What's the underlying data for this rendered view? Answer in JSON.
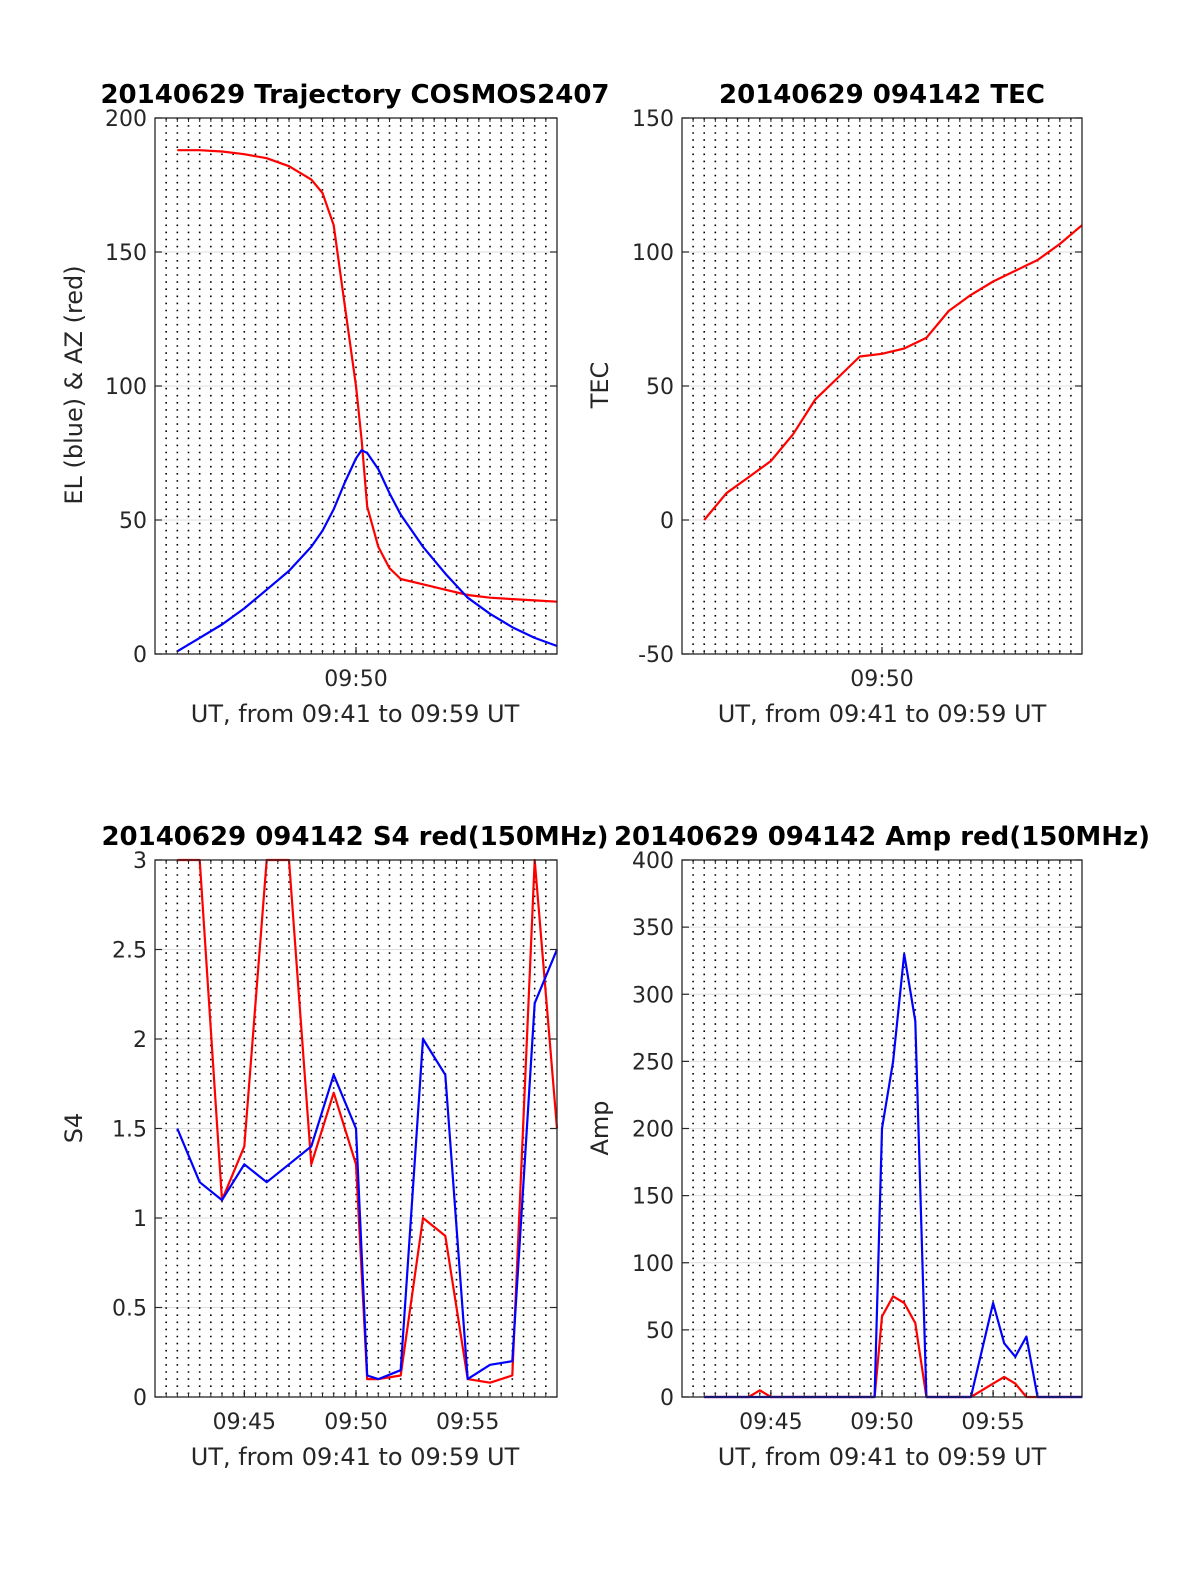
{
  "chart_data": [
    {
      "type": "line",
      "title": "20140629 Trajectory COSMOS2407",
      "xlabel": "UT, from 09:41 to 09:59 UT",
      "ylabel": "EL (blue) & AZ (red)",
      "xlim": [
        "09:41",
        "09:59"
      ],
      "ylim": [
        0,
        200
      ],
      "xticks": [
        "09:50"
      ],
      "yticks": [
        "0",
        "50",
        "100",
        "150",
        "200"
      ],
      "grid": "dotted vertical lines every 30 s; light horizontal lines at y ticks",
      "series": [
        {
          "color": "#ff0000",
          "label_ref": "AZ (red)",
          "x": [
            "09:42",
            "09:43",
            "09:44",
            "09:45",
            "09:46",
            "09:47",
            "09:48",
            "09:48:30",
            "09:49",
            "09:49:30",
            "09:50",
            "09:50:15",
            "09:50:30",
            "09:51",
            "09:51:30",
            "09:52",
            "09:53",
            "09:54",
            "09:55",
            "09:56",
            "09:57",
            "09:58",
            "09:59"
          ],
          "values": [
            188,
            188,
            187.5,
            186.5,
            185,
            182,
            177,
            172,
            160,
            130,
            100,
            80,
            55,
            40,
            32,
            28,
            26,
            24,
            22,
            21,
            20.5,
            20,
            19.5
          ]
        },
        {
          "color": "#0000ff",
          "label_ref": "EL (blue)",
          "x": [
            "09:42",
            "09:43",
            "09:44",
            "09:45",
            "09:46",
            "09:47",
            "09:48",
            "09:48:30",
            "09:49",
            "09:49:30",
            "09:50",
            "09:50:15",
            "09:50:30",
            "09:51",
            "09:51:30",
            "09:52",
            "09:53",
            "09:54",
            "09:55",
            "09:56",
            "09:57",
            "09:58",
            "09:59"
          ],
          "values": [
            1,
            6,
            11,
            17,
            24,
            31,
            40,
            46,
            54,
            64,
            73,
            76,
            75,
            69,
            60,
            52,
            40,
            30,
            21,
            15,
            10,
            6,
            3
          ]
        }
      ]
    },
    {
      "type": "line",
      "title": "20140629 094142 TEC",
      "xlabel": "UT, from 09:41 to 09:59 UT",
      "ylabel": "TEC",
      "xlim": [
        "09:41",
        "09:59"
      ],
      "ylim": [
        -50,
        150
      ],
      "xticks": [
        "09:50"
      ],
      "yticks": [
        "-50",
        "0",
        "50",
        "100",
        "150"
      ],
      "grid": "dotted vertical lines every 30 s; light horizontal lines at y ticks",
      "series": [
        {
          "color": "#ff0000",
          "x": [
            "09:42",
            "09:43",
            "09:44",
            "09:45",
            "09:46",
            "09:47",
            "09:48",
            "09:49",
            "09:50",
            "09:51",
            "09:52",
            "09:53",
            "09:54",
            "09:55",
            "09:56",
            "09:57",
            "09:58",
            "09:59"
          ],
          "values": [
            0,
            10,
            16,
            22,
            32,
            45,
            53,
            61,
            62,
            64,
            68,
            78,
            84,
            89,
            93,
            97,
            103,
            110
          ]
        }
      ]
    },
    {
      "type": "line",
      "title": "20140629 094142 S4 red(150MHz)",
      "xlabel": "UT, from 09:41 to 09:59 UT",
      "ylabel": "S4",
      "xlim": [
        "09:41",
        "09:59"
      ],
      "ylim": [
        0,
        3
      ],
      "xticks": [
        "09:45",
        "09:50",
        "09:55"
      ],
      "yticks": [
        "0",
        "0.5",
        "1",
        "1.5",
        "2",
        "2.5",
        "3"
      ],
      "grid": "dotted vertical lines every 30 s; light horizontal lines at y ticks",
      "series": [
        {
          "color": "#ff0000",
          "x": [
            "09:42",
            "09:43",
            "09:44",
            "09:45",
            "09:46",
            "09:47",
            "09:48",
            "09:49",
            "09:50",
            "09:50:30",
            "09:51",
            "09:52",
            "09:53",
            "09:54",
            "09:55",
            "09:56",
            "09:57",
            "09:58",
            "09:59"
          ],
          "values": [
            3,
            3,
            1.1,
            1.4,
            3,
            3,
            1.3,
            1.7,
            1.3,
            0.1,
            0.1,
            0.12,
            1.0,
            0.9,
            0.1,
            0.08,
            0.12,
            3,
            1.5
          ]
        },
        {
          "color": "#0000ff",
          "x": [
            "09:42",
            "09:43",
            "09:44",
            "09:45",
            "09:46",
            "09:47",
            "09:48",
            "09:49",
            "09:50",
            "09:50:30",
            "09:51",
            "09:52",
            "09:53",
            "09:54",
            "09:55",
            "09:56",
            "09:57",
            "09:58",
            "09:59"
          ],
          "values": [
            1.5,
            1.2,
            1.1,
            1.3,
            1.2,
            1.3,
            1.4,
            1.8,
            1.5,
            0.12,
            0.1,
            0.15,
            2.0,
            1.8,
            0.1,
            0.18,
            0.2,
            2.2,
            2.5
          ]
        }
      ]
    },
    {
      "type": "line",
      "title": "20140629 094142 Amp red(150MHz)",
      "xlabel": "UT, from 09:41 to 09:59 UT",
      "ylabel": "Amp",
      "xlim": [
        "09:41",
        "09:59"
      ],
      "ylim": [
        0,
        400
      ],
      "xticks": [
        "09:45",
        "09:50",
        "09:55"
      ],
      "yticks": [
        "0",
        "50",
        "100",
        "150",
        "200",
        "250",
        "300",
        "350",
        "400"
      ],
      "grid": "dotted vertical lines every 30 s; light horizontal lines at y ticks",
      "series": [
        {
          "color": "#ff0000",
          "x": [
            "09:42",
            "09:44",
            "09:44:30",
            "09:45",
            "09:49",
            "09:49:40",
            "09:50",
            "09:50:30",
            "09:51",
            "09:51:30",
            "09:52",
            "09:54",
            "09:55",
            "09:55:30",
            "09:56",
            "09:56:30",
            "09:59"
          ],
          "values": [
            0,
            0,
            5,
            0,
            0,
            0,
            60,
            75,
            70,
            55,
            0,
            0,
            10,
            15,
            10,
            0,
            0
          ]
        },
        {
          "color": "#0000ff",
          "x": [
            "09:42",
            "09:44",
            "09:45",
            "09:49",
            "09:49:40",
            "09:50",
            "09:50:30",
            "09:51",
            "09:51:30",
            "09:52",
            "09:54",
            "09:55",
            "09:55:30",
            "09:56",
            "09:56:30",
            "09:57",
            "09:59"
          ],
          "values": [
            0,
            0,
            0,
            0,
            0,
            200,
            250,
            330,
            280,
            0,
            0,
            70,
            40,
            30,
            45,
            0,
            0
          ]
        }
      ]
    }
  ]
}
